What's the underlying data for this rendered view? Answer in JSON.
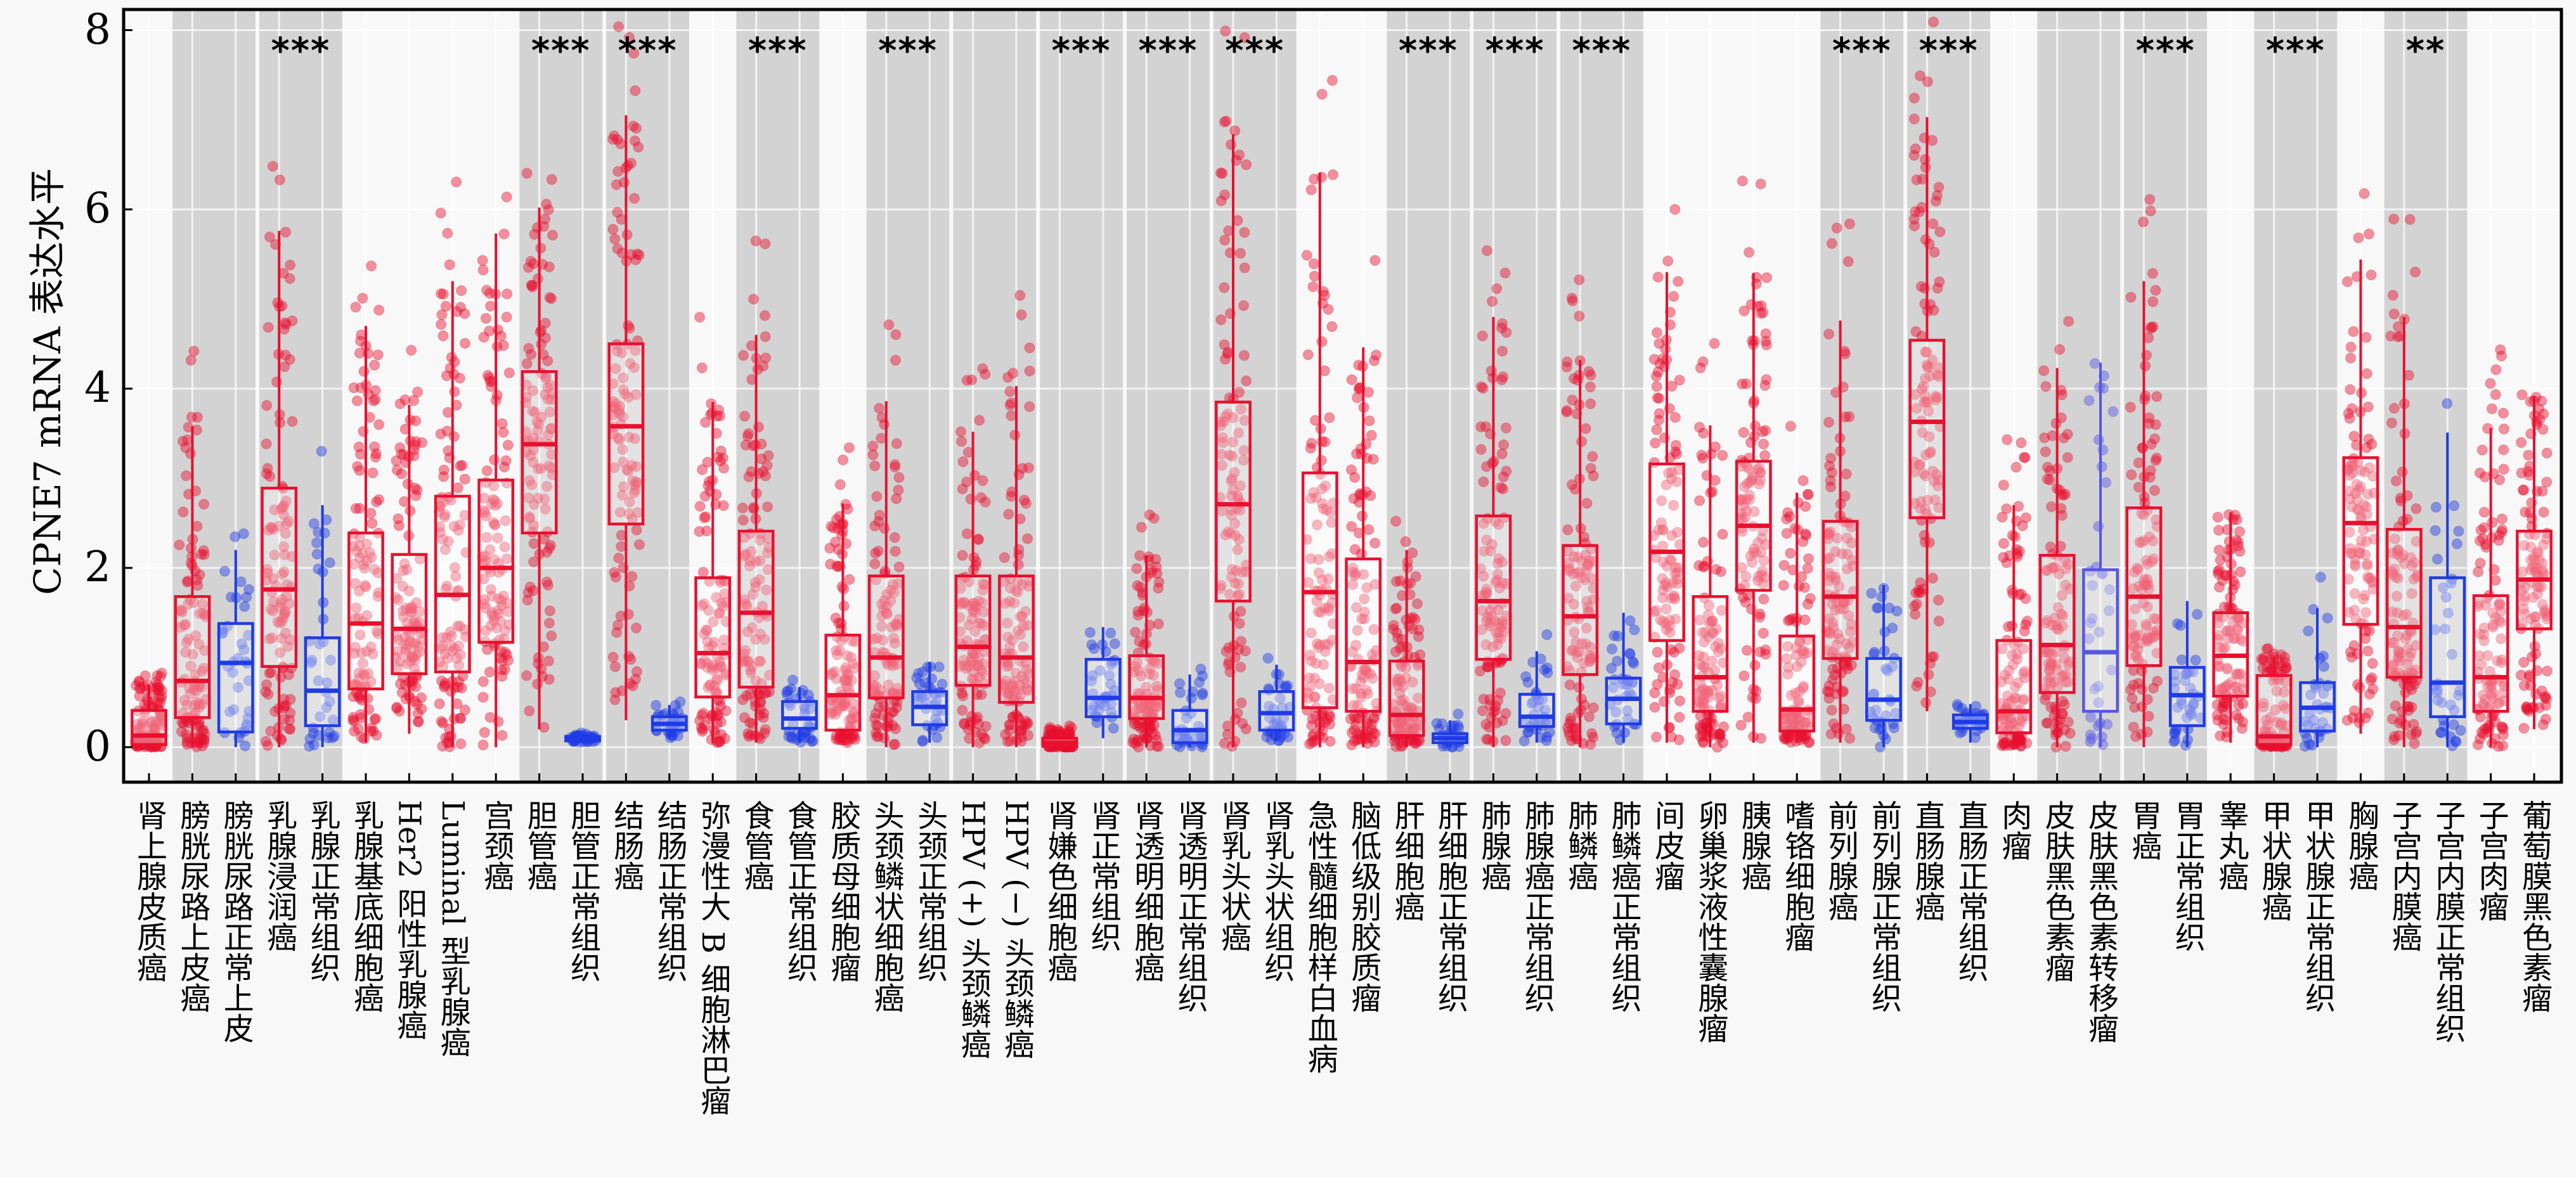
{
  "chart_data": {
    "type": "box",
    "ylabel": "CPNE7 mRNA 表达水平",
    "ylim": [
      -0.39,
      8.23
    ],
    "yticks": [
      0,
      2,
      4,
      6,
      8
    ],
    "grid": true,
    "categories": [
      "肾上腺皮质癌",
      "膀胱尿路上皮癌",
      "膀胱尿路正常上皮",
      "乳腺浸润癌",
      "乳腺正常组织",
      "乳腺基底细胞癌",
      "Her2 阳性乳腺癌",
      "Luminal 型乳腺癌",
      "宫颈癌",
      "胆管癌",
      "胆管正常组织",
      "结肠癌",
      "结肠正常组织",
      "弥漫性大 B 细胞淋巴瘤",
      "食管癌",
      "食管正常组织",
      "胶质母细胞瘤",
      "头颈鳞状细胞癌",
      "头颈正常组织",
      "HPV (+) 头颈鳞癌",
      "HPV (−) 头颈鳞癌",
      "肾嫌色细胞癌",
      "肾正常组织",
      "肾透明细胞癌",
      "肾透明正常组织",
      "肾乳头状癌",
      "肾乳头状组织",
      "急性髓细胞样白血病",
      "脑低级别胶质瘤",
      "肝细胞癌",
      "肝细胞正常组织",
      "肺腺癌",
      "肺腺癌正常组织",
      "肺鳞癌",
      "肺鳞癌正常组织",
      "间皮瘤",
      "卵巢浆液性囊腺瘤",
      "胰腺癌",
      "嗜铬细胞瘤",
      "前列腺癌",
      "前列腺正常组织",
      "直肠腺癌",
      "直肠正常组织",
      "肉瘤",
      "皮肤黑色素瘤",
      "皮肤黑色素转移瘤",
      "胃癌",
      "胃正常组织",
      "睾丸癌",
      "甲状腺癌",
      "甲状腺正常组织",
      "胸腺癌",
      "子宫内膜癌",
      "子宫内膜正常组织",
      "子宫肉瘤",
      "葡萄膜黑色素瘤"
    ],
    "groups": [
      "tumor",
      "tumor",
      "normal",
      "tumor",
      "normal",
      "tumor",
      "tumor",
      "tumor",
      "tumor",
      "tumor",
      "normal",
      "tumor",
      "normal",
      "tumor",
      "tumor",
      "normal",
      "tumor",
      "tumor",
      "normal",
      "tumor",
      "tumor",
      "tumor",
      "normal",
      "tumor",
      "normal",
      "tumor",
      "normal",
      "tumor",
      "tumor",
      "tumor",
      "normal",
      "tumor",
      "normal",
      "tumor",
      "normal",
      "tumor",
      "tumor",
      "tumor",
      "tumor",
      "tumor",
      "normal",
      "tumor",
      "normal",
      "tumor",
      "tumor",
      "metastasis",
      "tumor",
      "normal",
      "tumor",
      "tumor",
      "normal",
      "tumor",
      "tumor",
      "normal",
      "tumor",
      "tumor"
    ],
    "box_stats_fields": [
      "min",
      "q1",
      "median",
      "q3",
      "max"
    ],
    "box_stats": [
      [
        0.0,
        0.03,
        0.13,
        0.41,
        0.7
      ],
      [
        0.0,
        0.33,
        0.74,
        1.68,
        3.58
      ],
      [
        0.0,
        0.17,
        0.94,
        1.38,
        2.2
      ],
      [
        0.0,
        0.9,
        1.76,
        2.89,
        5.76
      ],
      [
        0.0,
        0.24,
        0.63,
        1.22,
        2.7
      ],
      [
        0.05,
        0.65,
        1.38,
        2.39,
        4.7
      ],
      [
        0.15,
        0.82,
        1.32,
        2.15,
        3.82
      ],
      [
        0.0,
        0.84,
        1.7,
        2.8,
        5.2
      ],
      [
        0.0,
        1.17,
        2.0,
        2.98,
        5.73
      ],
      [
        0.2,
        2.39,
        3.38,
        4.19,
        6.02
      ],
      [
        0.05,
        0.07,
        0.1,
        0.12,
        0.15
      ],
      [
        0.3,
        2.49,
        3.58,
        4.5,
        7.05
      ],
      [
        0.1,
        0.19,
        0.26,
        0.34,
        0.47
      ],
      [
        0.05,
        0.56,
        1.05,
        1.89,
        3.85
      ],
      [
        0.05,
        0.67,
        1.5,
        2.41,
        4.6
      ],
      [
        0.05,
        0.21,
        0.32,
        0.51,
        0.67
      ],
      [
        0.05,
        0.19,
        0.58,
        1.25,
        2.72
      ],
      [
        0.0,
        0.55,
        1.0,
        1.91,
        3.86
      ],
      [
        0.05,
        0.25,
        0.45,
        0.62,
        0.95
      ],
      [
        0.0,
        0.69,
        1.12,
        1.91,
        3.52
      ],
      [
        0.0,
        0.5,
        1.0,
        1.91,
        4.03
      ],
      [
        0.0,
        0.01,
        0.05,
        0.1,
        0.2
      ],
      [
        0.1,
        0.34,
        0.55,
        0.98,
        1.34
      ],
      [
        0.0,
        0.32,
        0.55,
        1.02,
        2.14
      ],
      [
        0.0,
        0.05,
        0.19,
        0.41,
        0.81
      ],
      [
        0.0,
        1.63,
        2.71,
        3.85,
        6.84
      ],
      [
        0.07,
        0.19,
        0.38,
        0.62,
        0.92
      ],
      [
        0.0,
        0.44,
        1.73,
        3.06,
        6.41
      ],
      [
        0.0,
        0.4,
        0.95,
        2.1,
        4.46
      ],
      [
        0.0,
        0.13,
        0.36,
        0.96,
        2.2
      ],
      [
        0.0,
        0.05,
        0.1,
        0.15,
        0.3
      ],
      [
        0.0,
        0.98,
        1.63,
        2.58,
        4.8
      ],
      [
        0.05,
        0.23,
        0.34,
        0.59,
        1.07
      ],
      [
        0.0,
        0.81,
        1.46,
        2.25,
        4.32
      ],
      [
        0.05,
        0.26,
        0.54,
        0.77,
        1.5
      ],
      [
        0.05,
        1.19,
        2.18,
        3.16,
        5.3
      ],
      [
        0.0,
        0.4,
        0.78,
        1.68,
        3.59
      ],
      [
        0.05,
        1.75,
        2.47,
        3.19,
        5.29
      ],
      [
        0.05,
        0.18,
        0.42,
        1.24,
        2.84
      ],
      [
        0.05,
        0.99,
        1.68,
        2.52,
        4.76
      ],
      [
        0.0,
        0.3,
        0.53,
        0.99,
        1.81
      ],
      [
        0.4,
        2.56,
        3.63,
        4.54,
        7.03
      ],
      [
        0.05,
        0.21,
        0.28,
        0.36,
        0.48
      ],
      [
        0.0,
        0.16,
        0.4,
        1.19,
        2.7
      ],
      [
        0.0,
        0.61,
        1.14,
        2.14,
        4.23
      ],
      [
        0.0,
        0.4,
        1.06,
        1.98,
        4.29
      ],
      [
        0.0,
        0.91,
        1.68,
        2.67,
        5.2
      ],
      [
        0.0,
        0.24,
        0.58,
        0.89,
        1.63
      ],
      [
        0.05,
        0.57,
        1.02,
        1.5,
        2.62
      ],
      [
        0.0,
        0.03,
        0.12,
        0.8,
        1.0
      ],
      [
        0.0,
        0.18,
        0.44,
        0.72,
        1.55
      ],
      [
        0.15,
        1.37,
        2.5,
        3.23,
        5.44
      ],
      [
        0.0,
        0.78,
        1.34,
        2.43,
        4.8
      ],
      [
        0.0,
        0.34,
        0.72,
        1.89,
        3.51
      ],
      [
        0.0,
        0.4,
        0.78,
        1.69,
        3.56
      ],
      [
        0.2,
        1.32,
        1.87,
        2.41,
        3.92
      ]
    ],
    "shaded_pairs": [
      [
        2,
        3
      ],
      [
        4,
        5
      ],
      [
        10,
        11
      ],
      [
        12,
        13
      ],
      [
        15,
        16
      ],
      [
        18,
        19
      ],
      [
        20,
        21
      ],
      [
        22,
        23
      ],
      [
        24,
        25
      ],
      [
        26,
        27
      ],
      [
        30,
        31
      ],
      [
        32,
        33
      ],
      [
        34,
        35
      ],
      [
        40,
        41
      ],
      [
        42,
        43
      ],
      [
        45,
        46
      ],
      [
        47,
        48
      ],
      [
        50,
        51
      ],
      [
        53,
        54
      ]
    ],
    "significance": [
      {
        "pair": [
          4,
          5
        ],
        "label": "***"
      },
      {
        "pair": [
          10,
          11
        ],
        "label": "***"
      },
      {
        "pair": [
          12,
          13
        ],
        "label": "***"
      },
      {
        "pair": [
          15,
          16
        ],
        "label": "***"
      },
      {
        "pair": [
          18,
          19
        ],
        "label": "***"
      },
      {
        "pair": [
          22,
          23
        ],
        "label": "***"
      },
      {
        "pair": [
          24,
          25
        ],
        "label": "***"
      },
      {
        "pair": [
          26,
          27
        ],
        "label": "***"
      },
      {
        "pair": [
          30,
          31
        ],
        "label": "***"
      },
      {
        "pair": [
          32,
          33
        ],
        "label": "***"
      },
      {
        "pair": [
          34,
          35
        ],
        "label": "***"
      },
      {
        "pair": [
          40,
          41
        ],
        "label": "***"
      },
      {
        "pair": [
          42,
          43
        ],
        "label": "***"
      },
      {
        "pair": [
          47,
          48
        ],
        "label": "***"
      },
      {
        "pair": [
          50,
          51
        ],
        "label": "***"
      },
      {
        "pair": [
          53,
          54
        ],
        "label": "**"
      }
    ],
    "colors": {
      "tumor": "#e8102e",
      "normal": "#1f3be6",
      "metastasis": "#5656e6",
      "shade": "#d3d3d3",
      "background": "#f8f8f8"
    }
  }
}
